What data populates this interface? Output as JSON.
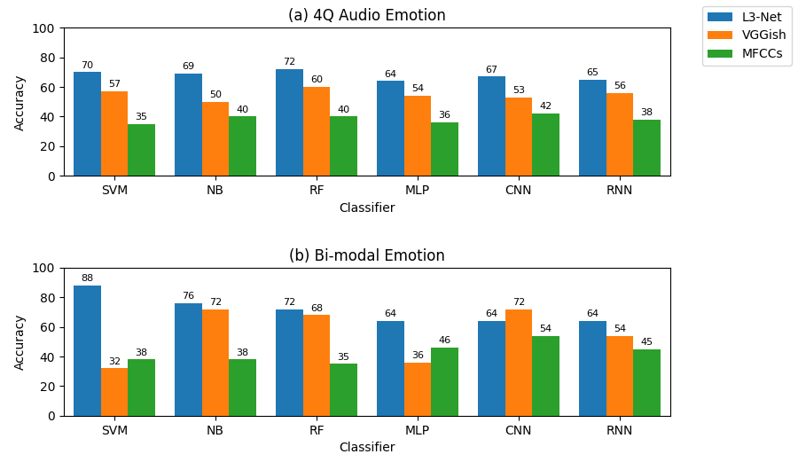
{
  "chart_data": [
    {
      "type": "bar",
      "title": "(a) 4Q Audio Emotion",
      "categories": [
        "SVM",
        "NB",
        "RF",
        "MLP",
        "CNN",
        "RNN"
      ],
      "series": [
        {
          "name": "L3-Net",
          "values": [
            70,
            69,
            72,
            64,
            67,
            65
          ]
        },
        {
          "name": "VGGish",
          "values": [
            57,
            50,
            60,
            54,
            53,
            56
          ]
        },
        {
          "name": "MFCCs",
          "values": [
            35,
            40,
            40,
            36,
            42,
            38
          ]
        }
      ],
      "xlabel": "Classifier",
      "ylabel": "Accuracy",
      "ylim": [
        0,
        100
      ],
      "yticks": [
        0,
        20,
        40,
        60,
        80,
        100
      ],
      "grid": false,
      "data_labels": true,
      "legend": "upper right"
    },
    {
      "type": "bar",
      "title": "(b) Bi-modal Emotion",
      "categories": [
        "SVM",
        "NB",
        "RF",
        "MLP",
        "CNN",
        "RNN"
      ],
      "series": [
        {
          "name": "L3-Net",
          "values": [
            88,
            76,
            72,
            64,
            64,
            64
          ]
        },
        {
          "name": "VGGish",
          "values": [
            32,
            72,
            68,
            36,
            72,
            54
          ]
        },
        {
          "name": "MFCCs",
          "values": [
            38,
            38,
            35,
            46,
            54,
            45
          ]
        }
      ],
      "xlabel": "Classifier",
      "ylabel": "Accuracy",
      "ylim": [
        0,
        100
      ],
      "yticks": [
        0,
        20,
        40,
        60,
        80,
        100
      ],
      "grid": false,
      "data_labels": true
    }
  ]
}
